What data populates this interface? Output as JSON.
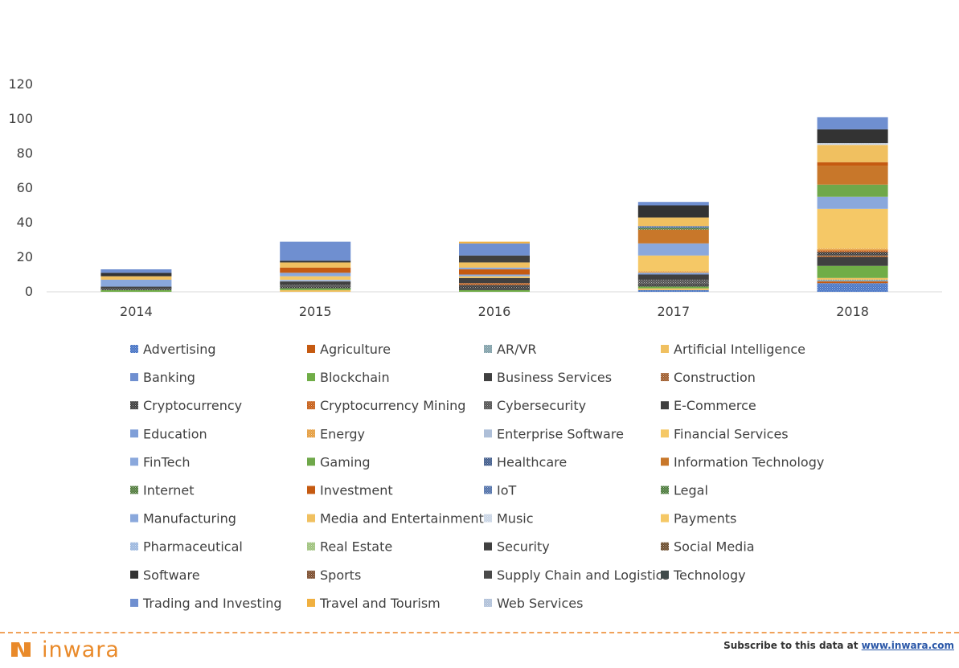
{
  "chart_data": {
    "type": "bar",
    "stacked": true,
    "title": "",
    "xlabel": "",
    "ylabel": "",
    "ylim": [
      0,
      120
    ],
    "yticks": [
      0,
      20,
      40,
      60,
      80,
      100,
      120
    ],
    "grid": false,
    "legend_position": "bottom",
    "categories": [
      "2014",
      "2015",
      "2016",
      "2017",
      "2018"
    ],
    "series": [
      {
        "name": "Advertising",
        "color": "#4472c4",
        "pattern": "dots",
        "values": [
          0,
          0,
          0,
          1,
          5
        ]
      },
      {
        "name": "Agriculture",
        "color": "#c55a11",
        "pattern": "solid",
        "values": [
          0,
          0,
          0,
          0,
          1
        ]
      },
      {
        "name": "AR/VR",
        "color": "#7f9fa8",
        "pattern": "dots",
        "values": [
          0,
          0,
          0,
          0,
          1
        ]
      },
      {
        "name": "Artificial Intelligence",
        "color": "#f0c060",
        "pattern": "solid",
        "values": [
          0,
          1,
          0,
          1,
          1
        ]
      },
      {
        "name": "Banking",
        "color": "#6f8fd0",
        "pattern": "solid",
        "values": [
          0,
          0,
          0,
          0,
          0
        ]
      },
      {
        "name": "Blockchain",
        "color": "#70ad47",
        "pattern": "solid",
        "values": [
          1,
          1,
          1,
          1,
          7
        ]
      },
      {
        "name": "Business Services",
        "color": "#404040",
        "pattern": "solid",
        "values": [
          0,
          0,
          1,
          0,
          5
        ]
      },
      {
        "name": "Construction",
        "color": "#9e5a2a",
        "pattern": "dots",
        "values": [
          0,
          0,
          0,
          0,
          1
        ]
      },
      {
        "name": "Cryptocurrency",
        "color": "#3a3a3a",
        "pattern": "dots",
        "values": [
          1,
          1,
          2,
          2,
          2
        ]
      },
      {
        "name": "Cryptocurrency Mining",
        "color": "#c55a11",
        "pattern": "dots",
        "values": [
          0,
          0,
          1,
          0,
          1
        ]
      },
      {
        "name": "Cybersecurity",
        "color": "#505050",
        "pattern": "dots",
        "values": [
          0,
          1,
          0,
          2,
          0
        ]
      },
      {
        "name": "E-Commerce",
        "color": "#404040",
        "pattern": "solid",
        "values": [
          1,
          2,
          3,
          3,
          0
        ]
      },
      {
        "name": "Education",
        "color": "#7f9fd8",
        "pattern": "solid",
        "values": [
          0,
          0,
          0,
          1,
          0
        ]
      },
      {
        "name": "Energy",
        "color": "#e49b3b",
        "pattern": "dots",
        "values": [
          0,
          0,
          0,
          1,
          1
        ]
      },
      {
        "name": "Enterprise Software",
        "color": "#aebfd8",
        "pattern": "solid",
        "values": [
          0,
          1,
          0,
          0,
          0
        ]
      },
      {
        "name": "Financial Services",
        "color": "#f5c866",
        "pattern": "solid",
        "values": [
          0,
          2,
          1,
          9,
          23
        ]
      },
      {
        "name": "FinTech",
        "color": "#8aa8dc",
        "pattern": "solid",
        "values": [
          4,
          2,
          1,
          7,
          7
        ]
      },
      {
        "name": "Gaming",
        "color": "#6fa84a",
        "pattern": "solid",
        "values": [
          0,
          0,
          0,
          0,
          7
        ]
      },
      {
        "name": "Healthcare",
        "color": "#3f5a8a",
        "pattern": "dots",
        "values": [
          0,
          0,
          0,
          0,
          0
        ]
      },
      {
        "name": "Information Technology",
        "color": "#c8772a",
        "pattern": "solid",
        "values": [
          0,
          0,
          0,
          8,
          11
        ]
      },
      {
        "name": "Internet",
        "color": "#4f7a3a",
        "pattern": "dots",
        "values": [
          0,
          0,
          0,
          1,
          0
        ]
      },
      {
        "name": "Investment",
        "color": "#c55a11",
        "pattern": "solid",
        "values": [
          0,
          3,
          3,
          0,
          2
        ]
      },
      {
        "name": "IoT",
        "color": "#4f6fa8",
        "pattern": "dots",
        "values": [
          0,
          0,
          0,
          1,
          0
        ]
      },
      {
        "name": "Legal",
        "color": "#4a7a3a",
        "pattern": "dots",
        "values": [
          0,
          0,
          0,
          0,
          0
        ]
      },
      {
        "name": "Manufacturing",
        "color": "#8aa8dc",
        "pattern": "solid",
        "values": [
          0,
          0,
          1,
          0,
          0
        ]
      },
      {
        "name": "Media and Entertainment",
        "color": "#f0c060",
        "pattern": "solid",
        "values": [
          2,
          3,
          3,
          5,
          10
        ]
      },
      {
        "name": "Music",
        "color": "#c8d4e4",
        "pattern": "dots",
        "values": [
          0,
          0,
          0,
          0,
          1
        ]
      },
      {
        "name": "Payments",
        "color": "#f5c866",
        "pattern": "solid",
        "values": [
          0,
          0,
          0,
          0,
          0
        ]
      },
      {
        "name": "Pharmaceutical",
        "color": "#9ab6de",
        "pattern": "dots",
        "values": [
          0,
          0,
          0,
          0,
          0
        ]
      },
      {
        "name": "Real Estate",
        "color": "#9cc07a",
        "pattern": "dots",
        "values": [
          0,
          0,
          0,
          0,
          0
        ]
      },
      {
        "name": "Security",
        "color": "#404040",
        "pattern": "solid",
        "values": [
          0,
          0,
          4,
          0,
          0
        ]
      },
      {
        "name": "Social Media",
        "color": "#6a4a2a",
        "pattern": "dots",
        "values": [
          0,
          0,
          0,
          0,
          0
        ]
      },
      {
        "name": "Software",
        "color": "#333333",
        "pattern": "solid",
        "values": [
          2,
          1,
          0,
          7,
          8
        ]
      },
      {
        "name": "Sports",
        "color": "#7a4a2a",
        "pattern": "dots",
        "values": [
          0,
          0,
          0,
          0,
          0
        ]
      },
      {
        "name": "Supply Chain and Logistics",
        "color": "#4a4a4a",
        "pattern": "solid",
        "values": [
          0,
          0,
          0,
          0,
          0
        ]
      },
      {
        "name": "Technology",
        "color": "#404a4a",
        "pattern": "solid",
        "values": [
          0,
          0,
          0,
          0,
          0
        ]
      },
      {
        "name": "Trading and Investing",
        "color": "#6f8fd0",
        "pattern": "solid",
        "values": [
          2,
          11,
          7,
          2,
          7
        ]
      },
      {
        "name": "Travel and Tourism",
        "color": "#f0b040",
        "pattern": "solid",
        "values": [
          0,
          0,
          1,
          0,
          0
        ]
      },
      {
        "name": "Web Services",
        "color": "#aebfd8",
        "pattern": "dots",
        "values": [
          0,
          0,
          0,
          0,
          0
        ]
      }
    ]
  },
  "footer": {
    "brand": "inwara",
    "subscribe_text": "Subscribe to this data at ",
    "subscribe_link": "www.inwara.com"
  }
}
